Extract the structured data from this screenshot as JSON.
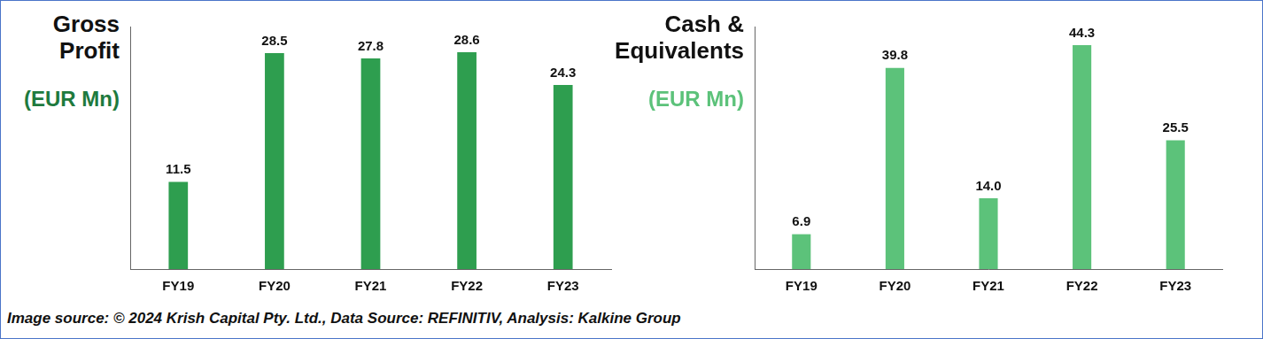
{
  "chart_data": [
    {
      "type": "bar",
      "title": "Gross Profit",
      "subtitle": "(EUR Mn)",
      "categories": [
        "FY19",
        "FY20",
        "FY21",
        "FY22",
        "FY23"
      ],
      "values": [
        11.5,
        28.5,
        27.8,
        28.6,
        24.3
      ],
      "color": "#2e9e4f",
      "ylim": [
        0,
        32
      ],
      "grid": false,
      "tick_labels": "x",
      "data_labels": true
    },
    {
      "type": "bar",
      "title": "Cash & Equivalents",
      "subtitle": "(EUR Mn)",
      "categories": [
        "FY19",
        "FY20",
        "FY21",
        "FY22",
        "FY23"
      ],
      "values": [
        6.9,
        39.8,
        14.0,
        44.3,
        25.5
      ],
      "value_labels": [
        "6.9",
        "39.8",
        "14.0",
        "44.3",
        "25.5"
      ],
      "color": "#5cc27a",
      "ylim": [
        0,
        48
      ],
      "grid": false,
      "tick_labels": "x",
      "data_labels": true
    }
  ],
  "footer": "Image source: © 2024 Krish Capital Pty. Ltd., Data Source: REFINITIV, Analysis: Kalkine Group"
}
